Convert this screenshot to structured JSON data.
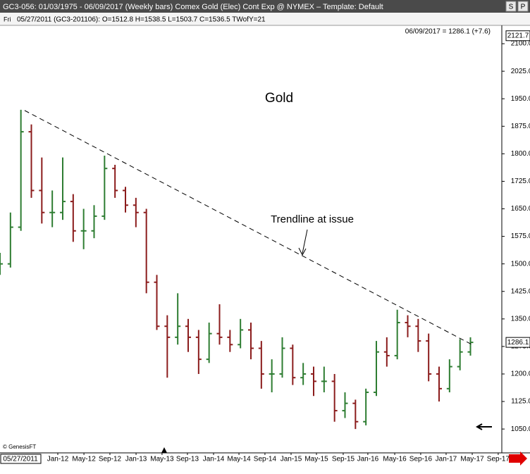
{
  "window": {
    "title": "GC3-056:  01/03/1975 - 06/09/2017  (Weekly bars)  Comex Gold (Elec) Cont Exp @ NYMEX  –  Template: Default",
    "day": "Fri",
    "info": "05/27/2011 (GC3-201106):  O=1512.8  H=1538.5  L=1503.7  C=1536.5  TWofY=21",
    "buttons": [
      "S",
      "P"
    ]
  },
  "chart_data": {
    "type": "ohlc",
    "title": "Gold",
    "x": [
      0,
      7,
      14,
      21,
      28,
      35,
      42,
      49,
      56,
      63,
      70,
      77,
      84,
      91,
      98,
      105,
      112,
      119,
      126,
      133,
      140,
      147,
      154,
      161,
      168,
      175,
      182,
      189,
      196,
      203,
      210,
      217,
      224,
      231,
      238,
      245,
      252,
      259,
      266,
      273,
      280,
      287,
      294,
      301,
      308,
      315
    ],
    "open": [
      1480,
      1500,
      1600,
      1860,
      1700,
      1640,
      1640,
      1670,
      1590,
      1590,
      1630,
      1760,
      1700,
      1660,
      1640,
      1450,
      1330,
      1300,
      1330,
      1300,
      1240,
      1310,
      1300,
      1280,
      1320,
      1270,
      1200,
      1200,
      1270,
      1190,
      1200,
      1180,
      1180,
      1100,
      1120,
      1070,
      1150,
      1260,
      1250,
      1340,
      1330,
      1290,
      1200,
      1160,
      1220,
      1260
    ],
    "high": [
      1530,
      1640,
      1920,
      1880,
      1790,
      1700,
      1790,
      1690,
      1650,
      1660,
      1795,
      1770,
      1710,
      1680,
      1650,
      1470,
      1360,
      1420,
      1350,
      1320,
      1340,
      1390,
      1320,
      1350,
      1340,
      1290,
      1240,
      1300,
      1280,
      1230,
      1220,
      1220,
      1200,
      1150,
      1130,
      1160,
      1290,
      1300,
      1375,
      1360,
      1350,
      1310,
      1220,
      1240,
      1295,
      1300
    ],
    "low": [
      1470,
      1490,
      1590,
      1680,
      1610,
      1600,
      1620,
      1560,
      1540,
      1570,
      1620,
      1680,
      1640,
      1600,
      1420,
      1320,
      1190,
      1280,
      1260,
      1200,
      1230,
      1280,
      1260,
      1270,
      1240,
      1160,
      1150,
      1190,
      1170,
      1170,
      1140,
      1150,
      1070,
      1080,
      1050,
      1060,
      1140,
      1220,
      1240,
      1300,
      1260,
      1180,
      1125,
      1150,
      1210,
      1250
    ],
    "close": [
      1500,
      1600,
      1860,
      1700,
      1640,
      1640,
      1670,
      1590,
      1590,
      1630,
      1760,
      1700,
      1660,
      1640,
      1450,
      1330,
      1300,
      1330,
      1300,
      1240,
      1310,
      1300,
      1280,
      1320,
      1270,
      1200,
      1200,
      1270,
      1190,
      1200,
      1180,
      1180,
      1100,
      1120,
      1070,
      1150,
      1260,
      1250,
      1340,
      1330,
      1290,
      1200,
      1160,
      1220,
      1260,
      1286.1
    ],
    "up_color": "#2e7d32",
    "down_color": "#8b1c1c",
    "xlim": [
      0,
      336
    ],
    "xticks": [
      {
        "value": 38.7,
        "label": "Jan-12"
      },
      {
        "value": 56.2,
        "label": "May-12"
      },
      {
        "value": 73.6,
        "label": "Sep-12"
      },
      {
        "value": 91.1,
        "label": "Jan-13"
      },
      {
        "value": 108.5,
        "label": "May-13"
      },
      {
        "value": 125.5,
        "label": "Sep-13"
      },
      {
        "value": 143,
        "label": "Jan-14"
      },
      {
        "value": 160,
        "label": "May-14"
      },
      {
        "value": 177.4,
        "label": "Sep-14"
      },
      {
        "value": 194.9,
        "label": "Jan-15"
      },
      {
        "value": 211.9,
        "label": "May-15"
      },
      {
        "value": 229.8,
        "label": "Sep-15"
      },
      {
        "value": 246.3,
        "label": "Jan-16"
      },
      {
        "value": 264.3,
        "label": "May-16"
      },
      {
        "value": 281.7,
        "label": "Sep-16"
      },
      {
        "value": 298.7,
        "label": "Jan-17"
      },
      {
        "value": 316.2,
        "label": "May-17"
      },
      {
        "value": 333.6,
        "label": "Sep-17"
      }
    ],
    "ylim": [
      985,
      2150
    ],
    "yticks": [
      {
        "value": 1050,
        "label": "1050.0"
      },
      {
        "value": 1125,
        "label": "1125.0"
      },
      {
        "value": 1200,
        "label": "1200.0"
      },
      {
        "value": 1275,
        "label": "1275.0"
      },
      {
        "value": 1350,
        "label": "1350.0"
      },
      {
        "value": 1425,
        "label": "1425.0"
      },
      {
        "value": 1500,
        "label": "1500.0"
      },
      {
        "value": 1575,
        "label": "1575.0"
      },
      {
        "value": 1650,
        "label": "1650.0"
      },
      {
        "value": 1725,
        "label": "1725.0"
      },
      {
        "value": 1800,
        "label": "1800.0"
      },
      {
        "value": 1875,
        "label": "1875.0"
      },
      {
        "value": 1950,
        "label": "1950.0"
      },
      {
        "value": 2025,
        "label": "2025.0"
      },
      {
        "value": 2100,
        "label": "2100.0"
      }
    ],
    "trendline": {
      "label": "Trendline at issue",
      "x": [
        16.5,
        317
      ],
      "y": [
        1918,
        1278
      ]
    },
    "last_label": "06/09/2017 = 1286.1 (+7.6)",
    "top_value": 2121.7,
    "last_price": 1286.1,
    "cursor_date": "05/27/2011",
    "source": "© GenesisFT"
  }
}
